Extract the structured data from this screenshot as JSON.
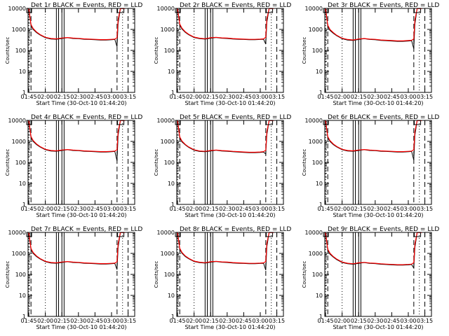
{
  "figure": {
    "event_color": "#000000",
    "lld_color": "#ff0000",
    "x_tick_labels": [
      "01:45",
      "02:00",
      "02:15",
      "02:30",
      "02:45",
      "03:00",
      "03:15"
    ],
    "y_tick_labels": [
      "1",
      "10",
      "100",
      "1000",
      "10000"
    ],
    "xlabel": "Start Time (30-Oct-10 01:44:20)",
    "ylabel": "Counts/sec"
  },
  "chart_data": [
    {
      "type": "line",
      "title": "Det 1r BLACK = Events, RED = LLD",
      "xlabel": "Start Time (30-Oct-10 01:44:20)",
      "ylabel": "Counts/sec",
      "y_scale": "log",
      "xlim": [
        "01:44:20",
        "03:21:00"
      ],
      "ylim": [
        1,
        10000
      ],
      "x": [
        "01:45",
        "01:47",
        "01:49",
        "01:52",
        "01:55",
        "02:00",
        "02:05",
        "02:10",
        "02:15",
        "02:20",
        "02:25",
        "02:30",
        "02:35",
        "02:40",
        "02:45",
        "02:50",
        "02:55",
        "03:00",
        "03:03",
        "03:05",
        "03:06",
        "03:08",
        "03:10",
        "03:12"
      ],
      "series": [
        {
          "name": "Events",
          "color": "#000000",
          "values": [
            9800,
            1500,
            1000,
            700,
            550,
            400,
            350,
            340,
            370,
            400,
            370,
            360,
            340,
            330,
            320,
            310,
            310,
            320,
            330,
            150,
            2000,
            9800,
            9800,
            9800
          ]
        },
        {
          "name": "LLD",
          "color": "#ff0000",
          "values": [
            9800,
            1700,
            1100,
            750,
            580,
            420,
            370,
            355,
            390,
            410,
            385,
            375,
            355,
            345,
            335,
            325,
            325,
            335,
            345,
            400,
            3000,
            9800,
            9800,
            9800
          ]
        }
      ]
    },
    {
      "type": "line",
      "title": "Det 2r BLACK = Events, RED = LLD",
      "xlabel": "Start Time (30-Oct-10 01:44:20)",
      "ylabel": "Counts/sec",
      "y_scale": "log",
      "xlim": [
        "01:44:20",
        "03:21:00"
      ],
      "ylim": [
        1,
        10000
      ],
      "x": [
        "01:45",
        "01:47",
        "01:49",
        "01:52",
        "01:55",
        "02:00",
        "02:05",
        "02:10",
        "02:15",
        "02:20",
        "02:25",
        "02:30",
        "02:35",
        "02:40",
        "02:45",
        "02:50",
        "02:55",
        "03:00",
        "03:03",
        "03:05",
        "03:06",
        "03:08",
        "03:10",
        "03:12"
      ],
      "series": [
        {
          "name": "Events",
          "color": "#000000",
          "values": [
            9800,
            1600,
            1050,
            720,
            560,
            410,
            360,
            345,
            380,
            410,
            380,
            370,
            350,
            340,
            330,
            320,
            320,
            330,
            340,
            200,
            2200,
            9800,
            9800,
            9800
          ]
        },
        {
          "name": "LLD",
          "color": "#ff0000",
          "values": [
            9800,
            1800,
            1150,
            770,
            590,
            430,
            380,
            360,
            400,
            420,
            395,
            385,
            365,
            355,
            345,
            335,
            335,
            345,
            355,
            420,
            3200,
            9800,
            9800,
            9800
          ]
        }
      ]
    },
    {
      "type": "line",
      "title": "Det 3r BLACK = Events, RED = LLD",
      "xlabel": "Start Time (30-Oct-10 01:44:20)",
      "ylabel": "Counts/sec",
      "y_scale": "log",
      "xlim": [
        "01:44:20",
        "03:21:00"
      ],
      "ylim": [
        1,
        10000
      ],
      "x": [
        "01:45",
        "01:47",
        "01:49",
        "01:52",
        "01:55",
        "02:00",
        "02:05",
        "02:10",
        "02:15",
        "02:20",
        "02:25",
        "02:30",
        "02:35",
        "02:40",
        "02:45",
        "02:50",
        "02:55",
        "03:00",
        "03:03",
        "03:05",
        "03:06",
        "03:08",
        "03:10",
        "03:12"
      ],
      "series": [
        {
          "name": "Events",
          "color": "#000000",
          "values": [
            9800,
            1400,
            900,
            650,
            500,
            360,
            310,
            300,
            330,
            360,
            330,
            320,
            300,
            290,
            280,
            270,
            270,
            280,
            290,
            120,
            1800,
            9800,
            9800,
            9800
          ]
        },
        {
          "name": "LLD",
          "color": "#ff0000",
          "values": [
            9800,
            1600,
            1000,
            700,
            530,
            380,
            330,
            315,
            350,
            370,
            345,
            335,
            315,
            305,
            295,
            285,
            285,
            295,
            305,
            350,
            2800,
            9800,
            9800,
            9800
          ]
        }
      ]
    },
    {
      "type": "line",
      "title": "Det 4r BLACK = Events, RED = LLD",
      "xlabel": "Start Time (30-Oct-10 01:44:20)",
      "ylabel": "Counts/sec",
      "y_scale": "log",
      "xlim": [
        "01:44:20",
        "03:21:00"
      ],
      "ylim": [
        1,
        10000
      ],
      "x": [
        "01:45",
        "01:47",
        "01:49",
        "01:52",
        "01:55",
        "02:00",
        "02:05",
        "02:10",
        "02:15",
        "02:20",
        "02:25",
        "02:30",
        "02:35",
        "02:40",
        "02:45",
        "02:50",
        "02:55",
        "03:00",
        "03:03",
        "03:05",
        "03:06",
        "03:08",
        "03:10",
        "03:12"
      ],
      "series": [
        {
          "name": "Events",
          "color": "#000000",
          "values": [
            9800,
            1500,
            1000,
            700,
            550,
            400,
            350,
            340,
            370,
            400,
            370,
            360,
            340,
            330,
            320,
            310,
            310,
            320,
            330,
            120,
            2000,
            9800,
            9800,
            9800
          ]
        },
        {
          "name": "LLD",
          "color": "#ff0000",
          "values": [
            9800,
            1700,
            1100,
            750,
            580,
            420,
            370,
            355,
            390,
            410,
            385,
            375,
            355,
            345,
            335,
            325,
            325,
            335,
            345,
            400,
            3000,
            9800,
            9800,
            9800
          ]
        }
      ]
    },
    {
      "type": "line",
      "title": "Det 5r BLACK = Events, RED = LLD",
      "xlabel": "Start Time (30-Oct-10 01:44:20)",
      "ylabel": "Counts/sec",
      "y_scale": "log",
      "xlim": [
        "01:44:20",
        "03:21:00"
      ],
      "ylim": [
        1,
        10000
      ],
      "x": [
        "01:45",
        "01:47",
        "01:49",
        "01:52",
        "01:55",
        "02:00",
        "02:05",
        "02:10",
        "02:15",
        "02:20",
        "02:25",
        "02:30",
        "02:35",
        "02:40",
        "02:45",
        "02:50",
        "02:55",
        "03:00",
        "03:03",
        "03:05",
        "03:06",
        "03:08",
        "03:10",
        "03:12"
      ],
      "series": [
        {
          "name": "Events",
          "color": "#000000",
          "values": [
            9800,
            1450,
            950,
            680,
            520,
            380,
            330,
            320,
            350,
            380,
            350,
            340,
            320,
            310,
            300,
            290,
            290,
            300,
            310,
            250,
            2100,
            9800,
            9800,
            9800
          ]
        },
        {
          "name": "LLD",
          "color": "#ff0000",
          "values": [
            9800,
            1650,
            1050,
            720,
            550,
            400,
            350,
            335,
            370,
            390,
            365,
            355,
            335,
            325,
            315,
            305,
            305,
            315,
            325,
            380,
            2900,
            9800,
            9800,
            9800
          ]
        }
      ]
    },
    {
      "type": "line",
      "title": "Det 6r BLACK = Events, RED = LLD",
      "xlabel": "Start Time (30-Oct-10 01:44:20)",
      "ylabel": "Counts/sec",
      "y_scale": "log",
      "xlim": [
        "01:44:20",
        "03:21:00"
      ],
      "ylim": [
        1,
        10000
      ],
      "x": [
        "01:45",
        "01:47",
        "01:49",
        "01:52",
        "01:55",
        "02:00",
        "02:05",
        "02:10",
        "02:15",
        "02:20",
        "02:25",
        "02:30",
        "02:35",
        "02:40",
        "02:45",
        "02:50",
        "02:55",
        "03:00",
        "03:03",
        "03:05",
        "03:06",
        "03:08",
        "03:10",
        "03:12"
      ],
      "series": [
        {
          "name": "Events",
          "color": "#000000",
          "values": [
            9800,
            1500,
            1000,
            700,
            550,
            400,
            350,
            340,
            370,
            400,
            370,
            360,
            340,
            330,
            320,
            310,
            310,
            320,
            330,
            130,
            2000,
            9800,
            9800,
            9800
          ]
        },
        {
          "name": "LLD",
          "color": "#ff0000",
          "values": [
            9800,
            1700,
            1100,
            750,
            580,
            420,
            370,
            355,
            390,
            410,
            385,
            375,
            355,
            345,
            335,
            325,
            325,
            335,
            345,
            400,
            3000,
            9800,
            9800,
            9800
          ]
        }
      ]
    },
    {
      "type": "line",
      "title": "Det 7r BLACK = Events, RED = LLD",
      "xlabel": "Start Time (30-Oct-10 01:44:20)",
      "ylabel": "Counts/sec",
      "y_scale": "log",
      "xlim": [
        "01:44:20",
        "03:21:00"
      ],
      "ylim": [
        1,
        10000
      ],
      "x": [
        "01:45",
        "01:47",
        "01:49",
        "01:52",
        "01:55",
        "02:00",
        "02:05",
        "02:10",
        "02:15",
        "02:20",
        "02:25",
        "02:30",
        "02:35",
        "02:40",
        "02:45",
        "02:50",
        "02:55",
        "03:00",
        "03:03",
        "03:05",
        "03:06",
        "03:08",
        "03:10",
        "03:12"
      ],
      "series": [
        {
          "name": "Events",
          "color": "#000000",
          "values": [
            9800,
            1500,
            1000,
            700,
            550,
            400,
            350,
            340,
            370,
            400,
            370,
            360,
            340,
            330,
            320,
            310,
            310,
            320,
            330,
            170,
            2000,
            9800,
            9800,
            9800
          ]
        },
        {
          "name": "LLD",
          "color": "#ff0000",
          "values": [
            9800,
            1700,
            1100,
            750,
            580,
            420,
            370,
            355,
            390,
            410,
            385,
            375,
            355,
            345,
            335,
            325,
            325,
            335,
            345,
            400,
            3000,
            9800,
            9800,
            9800
          ]
        }
      ]
    },
    {
      "type": "line",
      "title": "Det 8r BLACK = Events, RED = LLD",
      "xlabel": "Start Time (30-Oct-10 01:44:20)",
      "ylabel": "Counts/sec",
      "y_scale": "log",
      "xlim": [
        "01:44:20",
        "03:21:00"
      ],
      "ylim": [
        1,
        10000
      ],
      "x": [
        "01:45",
        "01:47",
        "01:49",
        "01:52",
        "01:55",
        "02:00",
        "02:05",
        "02:10",
        "02:15",
        "02:20",
        "02:25",
        "02:30",
        "02:35",
        "02:40",
        "02:45",
        "02:50",
        "02:55",
        "03:00",
        "03:03",
        "03:05",
        "03:06",
        "03:08",
        "03:10",
        "03:12"
      ],
      "series": [
        {
          "name": "Events",
          "color": "#000000",
          "values": [
            9800,
            1550,
            1020,
            710,
            560,
            410,
            360,
            345,
            380,
            410,
            380,
            370,
            350,
            340,
            330,
            320,
            320,
            330,
            340,
            160,
            2100,
            9800,
            9800,
            9800
          ]
        },
        {
          "name": "LLD",
          "color": "#ff0000",
          "values": [
            9800,
            1750,
            1120,
            760,
            590,
            430,
            380,
            360,
            400,
            420,
            395,
            385,
            365,
            355,
            345,
            335,
            335,
            345,
            355,
            410,
            3100,
            9800,
            9800,
            9800
          ]
        }
      ]
    },
    {
      "type": "line",
      "title": "Det 9r BLACK = Events, RED = LLD",
      "xlabel": "Start Time (30-Oct-10 01:44:20)",
      "ylabel": "Counts/sec",
      "y_scale": "log",
      "xlim": [
        "01:44:20",
        "03:21:00"
      ],
      "ylim": [
        1,
        10000
      ],
      "x": [
        "01:45",
        "01:47",
        "01:49",
        "01:52",
        "01:55",
        "02:00",
        "02:05",
        "02:10",
        "02:15",
        "02:20",
        "02:25",
        "02:30",
        "02:35",
        "02:40",
        "02:45",
        "02:50",
        "02:55",
        "03:00",
        "03:03",
        "03:05",
        "03:06",
        "03:08",
        "03:10",
        "03:12"
      ],
      "series": [
        {
          "name": "Events",
          "color": "#000000",
          "values": [
            9800,
            1400,
            920,
            660,
            510,
            370,
            320,
            305,
            335,
            365,
            335,
            325,
            305,
            295,
            285,
            275,
            275,
            285,
            295,
            200,
            1900,
            9800,
            9800,
            9800
          ]
        },
        {
          "name": "LLD",
          "color": "#ff0000",
          "values": [
            9800,
            1600,
            1020,
            710,
            540,
            390,
            340,
            320,
            355,
            375,
            350,
            340,
            320,
            310,
            300,
            290,
            290,
            300,
            310,
            360,
            2800,
            9800,
            9800,
            9800
          ]
        }
      ]
    }
  ],
  "markers": {
    "dotted_times": [
      "01:45",
      "02:00",
      "03:10"
    ],
    "dashed_times": [
      "01:47",
      "03:05",
      "03:15"
    ],
    "solid_times": [
      "02:10",
      "02:12",
      "02:15",
      "02:17"
    ]
  }
}
